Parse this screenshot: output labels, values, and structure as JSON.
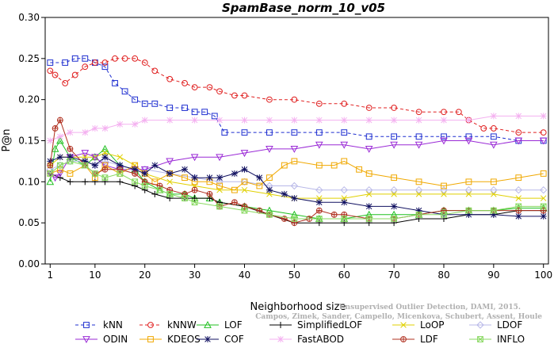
{
  "chart_data": {
    "type": "line",
    "title": "SpamBase_norm_10_v05",
    "xlabel": "Neighborhood size",
    "ylabel": "P@n",
    "xlim": [
      0,
      101
    ],
    "ylim": [
      0,
      0.3
    ],
    "xticks": [
      1,
      10,
      20,
      30,
      40,
      50,
      60,
      70,
      80,
      90,
      100
    ],
    "yticks": [
      0.0,
      0.05,
      0.1,
      0.15,
      0.2,
      0.25,
      0.3
    ],
    "ytick_labels": [
      "0.00",
      "0.05",
      "0.10",
      "0.15",
      "0.20",
      "0.25",
      "0.30"
    ],
    "grid": false,
    "legend_position": "bottom",
    "source_note": [
      "Campos, Zimek, Sander, Campello, Micenkova, Schubert, Assent, Houle",
      "Unsupervised Outlier Detection, DAMI, 2015."
    ],
    "series": [
      {
        "name": "kNN",
        "color": "#1f2fd0",
        "marker": "square",
        "dash": "4,3",
        "x": [
          1,
          4,
          6,
          8,
          10,
          12,
          14,
          16,
          18,
          20,
          22,
          25,
          28,
          30,
          32,
          34,
          36,
          40,
          45,
          50,
          55,
          60,
          65,
          70,
          75,
          80,
          85,
          90,
          95,
          100
        ],
        "y": [
          0.245,
          0.245,
          0.25,
          0.25,
          0.245,
          0.24,
          0.22,
          0.21,
          0.2,
          0.195,
          0.195,
          0.19,
          0.19,
          0.185,
          0.185,
          0.18,
          0.16,
          0.16,
          0.16,
          0.16,
          0.16,
          0.16,
          0.155,
          0.155,
          0.155,
          0.155,
          0.155,
          0.155,
          0.15,
          0.15
        ]
      },
      {
        "name": "kNNW",
        "color": "#e02020",
        "marker": "circle",
        "dash": "4,3",
        "x": [
          1,
          2,
          4,
          6,
          8,
          10,
          12,
          14,
          16,
          18,
          20,
          22,
          25,
          28,
          30,
          33,
          35,
          38,
          40,
          45,
          50,
          55,
          60,
          65,
          70,
          75,
          80,
          83,
          85,
          88,
          90,
          95,
          100
        ],
        "y": [
          0.235,
          0.23,
          0.22,
          0.23,
          0.24,
          0.245,
          0.245,
          0.25,
          0.25,
          0.25,
          0.245,
          0.235,
          0.225,
          0.22,
          0.215,
          0.215,
          0.21,
          0.205,
          0.205,
          0.2,
          0.2,
          0.195,
          0.195,
          0.19,
          0.19,
          0.185,
          0.185,
          0.185,
          0.175,
          0.165,
          0.165,
          0.16,
          0.16
        ]
      },
      {
        "name": "LOF",
        "color": "#20c020",
        "marker": "triangle",
        "dash": "",
        "x": [
          1,
          2,
          3,
          5,
          8,
          10,
          12,
          15,
          18,
          20,
          23,
          25,
          28,
          30,
          33,
          35,
          40,
          45,
          50,
          55,
          60,
          65,
          70,
          75,
          80,
          85,
          90,
          95,
          100
        ],
        "y": [
          0.1,
          0.14,
          0.15,
          0.13,
          0.12,
          0.13,
          0.14,
          0.12,
          0.115,
          0.1,
          0.09,
          0.085,
          0.085,
          0.08,
          0.08,
          0.075,
          0.07,
          0.065,
          0.06,
          0.055,
          0.055,
          0.06,
          0.06,
          0.06,
          0.065,
          0.065,
          0.065,
          0.068,
          0.068
        ]
      },
      {
        "name": "SimplifiedLOF",
        "color": "#000000",
        "marker": "plus",
        "dash": "",
        "x": [
          1,
          3,
          5,
          8,
          10,
          12,
          15,
          18,
          20,
          22,
          25,
          28,
          30,
          33,
          35,
          40,
          45,
          50,
          55,
          60,
          65,
          70,
          75,
          80,
          85,
          90,
          95,
          100
        ],
        "y": [
          0.11,
          0.105,
          0.1,
          0.1,
          0.1,
          0.1,
          0.1,
          0.095,
          0.09,
          0.085,
          0.08,
          0.08,
          0.08,
          0.08,
          0.075,
          0.07,
          0.06,
          0.05,
          0.05,
          0.05,
          0.05,
          0.05,
          0.055,
          0.055,
          0.06,
          0.06,
          0.065,
          0.065
        ]
      },
      {
        "name": "LoOP",
        "color": "#e0d000",
        "marker": "x",
        "dash": "",
        "x": [
          1,
          3,
          5,
          8,
          10,
          12,
          15,
          18,
          20,
          25,
          30,
          35,
          40,
          45,
          50,
          55,
          60,
          65,
          70,
          75,
          80,
          85,
          90,
          95,
          100
        ],
        "y": [
          0.12,
          0.13,
          0.13,
          0.13,
          0.13,
          0.135,
          0.13,
          0.12,
          0.11,
          0.1,
          0.095,
          0.09,
          0.09,
          0.085,
          0.08,
          0.08,
          0.08,
          0.085,
          0.085,
          0.085,
          0.085,
          0.085,
          0.085,
          0.08,
          0.08
        ]
      },
      {
        "name": "LDOF",
        "color": "#b8b8e8",
        "marker": "diamond",
        "dash": "",
        "x": [
          1,
          3,
          5,
          8,
          10,
          12,
          15,
          18,
          20,
          25,
          30,
          35,
          40,
          45,
          50,
          55,
          60,
          65,
          70,
          75,
          80,
          85,
          90,
          95,
          100
        ],
        "y": [
          0.115,
          0.12,
          0.125,
          0.125,
          0.12,
          0.125,
          0.12,
          0.115,
          0.115,
          0.11,
          0.105,
          0.1,
          0.1,
          0.095,
          0.095,
          0.09,
          0.09,
          0.09,
          0.09,
          0.09,
          0.09,
          0.09,
          0.09,
          0.09,
          0.09
        ]
      },
      {
        "name": "ODIN",
        "color": "#9a2ad6",
        "marker": "invtriangle",
        "dash": "",
        "x": [
          1,
          2,
          3,
          5,
          8,
          10,
          12,
          15,
          18,
          20,
          25,
          30,
          35,
          40,
          45,
          50,
          55,
          60,
          65,
          70,
          75,
          80,
          85,
          90,
          95,
          100
        ],
        "y": [
          0.11,
          0.105,
          0.11,
          0.13,
          0.135,
          0.13,
          0.12,
          0.115,
          0.115,
          0.115,
          0.125,
          0.13,
          0.13,
          0.135,
          0.14,
          0.14,
          0.145,
          0.145,
          0.14,
          0.145,
          0.145,
          0.15,
          0.15,
          0.145,
          0.15,
          0.15
        ]
      },
      {
        "name": "KDEOS",
        "color": "#f0a800",
        "marker": "square",
        "dash": "",
        "x": [
          1,
          3,
          5,
          8,
          10,
          12,
          15,
          18,
          20,
          22,
          25,
          28,
          30,
          33,
          35,
          38,
          40,
          43,
          45,
          48,
          50,
          55,
          58,
          60,
          63,
          65,
          70,
          75,
          80,
          85,
          90,
          95,
          100
        ],
        "y": [
          0.11,
          0.115,
          0.11,
          0.12,
          0.105,
          0.12,
          0.11,
          0.12,
          0.11,
          0.1,
          0.11,
          0.105,
          0.1,
          0.1,
          0.095,
          0.09,
          0.1,
          0.095,
          0.105,
          0.12,
          0.125,
          0.12,
          0.12,
          0.125,
          0.115,
          0.11,
          0.105,
          0.1,
          0.095,
          0.1,
          0.1,
          0.105,
          0.11
        ]
      },
      {
        "name": "COF",
        "color": "#101060",
        "marker": "star",
        "dash": "",
        "x": [
          1,
          3,
          5,
          8,
          10,
          12,
          15,
          18,
          20,
          22,
          25,
          28,
          30,
          33,
          35,
          38,
          40,
          43,
          45,
          48,
          50,
          55,
          60,
          65,
          70,
          75,
          80,
          85,
          90,
          95,
          100
        ],
        "y": [
          0.125,
          0.13,
          0.13,
          0.125,
          0.12,
          0.13,
          0.12,
          0.115,
          0.11,
          0.12,
          0.11,
          0.115,
          0.105,
          0.105,
          0.105,
          0.11,
          0.115,
          0.105,
          0.09,
          0.085,
          0.08,
          0.075,
          0.075,
          0.07,
          0.07,
          0.065,
          0.06,
          0.06,
          0.06,
          0.058,
          0.058
        ]
      },
      {
        "name": "FastABOD",
        "color": "#f4b0f0",
        "marker": "star",
        "dash": "",
        "x": [
          1,
          3,
          5,
          8,
          10,
          12,
          15,
          18,
          20,
          25,
          30,
          35,
          40,
          45,
          50,
          55,
          60,
          65,
          70,
          75,
          80,
          85,
          90,
          95,
          100
        ],
        "y": [
          0.15,
          0.155,
          0.16,
          0.16,
          0.165,
          0.165,
          0.17,
          0.17,
          0.175,
          0.175,
          0.175,
          0.175,
          0.175,
          0.175,
          0.175,
          0.175,
          0.175,
          0.175,
          0.175,
          0.175,
          0.175,
          0.175,
          0.18,
          0.18,
          0.18
        ]
      },
      {
        "name": "LDF",
        "color": "#b03020",
        "marker": "circleplus",
        "dash": "",
        "x": [
          1,
          2,
          3,
          5,
          8,
          10,
          12,
          15,
          18,
          20,
          23,
          25,
          28,
          30,
          33,
          35,
          38,
          40,
          43,
          45,
          48,
          50,
          53,
          55,
          58,
          60,
          65,
          70,
          75,
          80,
          85,
          90,
          95,
          100
        ],
        "y": [
          0.12,
          0.165,
          0.175,
          0.14,
          0.12,
          0.11,
          0.115,
          0.115,
          0.11,
          0.1,
          0.095,
          0.09,
          0.085,
          0.09,
          0.085,
          0.07,
          0.075,
          0.07,
          0.065,
          0.06,
          0.055,
          0.05,
          0.055,
          0.065,
          0.06,
          0.06,
          0.055,
          0.055,
          0.06,
          0.065,
          0.065,
          0.065,
          0.065,
          0.065
        ]
      },
      {
        "name": "INFLO",
        "color": "#88d860",
        "marker": "boxx",
        "dash": "",
        "x": [
          1,
          3,
          5,
          8,
          10,
          12,
          15,
          18,
          20,
          23,
          25,
          28,
          30,
          35,
          40,
          45,
          50,
          55,
          60,
          65,
          70,
          75,
          80,
          85,
          90,
          95,
          100
        ],
        "y": [
          0.11,
          0.12,
          0.125,
          0.12,
          0.11,
          0.105,
          0.11,
          0.1,
          0.095,
          0.09,
          0.085,
          0.08,
          0.075,
          0.07,
          0.065,
          0.06,
          0.055,
          0.055,
          0.055,
          0.055,
          0.055,
          0.06,
          0.06,
          0.065,
          0.065,
          0.07,
          0.07
        ]
      }
    ]
  }
}
